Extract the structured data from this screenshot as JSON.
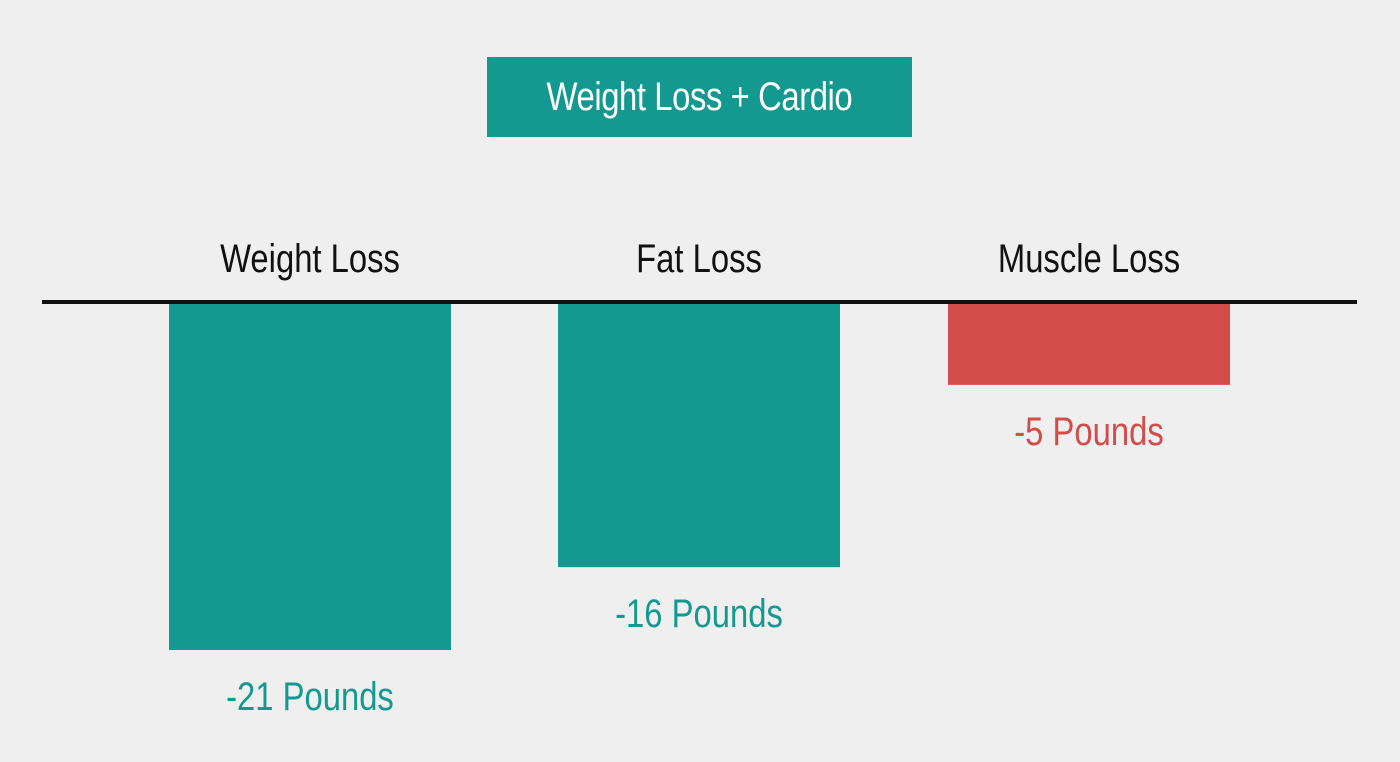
{
  "colors": {
    "background": "#efefef",
    "teal": "#139990",
    "red": "#d24d4a",
    "axis": "#111111",
    "category_text": "#111111"
  },
  "chart_data": {
    "type": "bar",
    "title": "Weight Loss + Cardio",
    "categories": [
      "Weight Loss",
      "Fat Loss",
      "Muscle Loss"
    ],
    "values": [
      -21,
      -16,
      -5
    ],
    "value_labels": [
      "-21 Pounds",
      "-16 Pounds",
      "-5 Pounds"
    ],
    "bar_colors": [
      "#139990",
      "#139990",
      "#d24d4a"
    ],
    "category_position": "above-baseline",
    "ylim": [
      -21,
      0
    ],
    "grid": false,
    "legend": "none",
    "xlabel": "",
    "ylabel": ""
  }
}
